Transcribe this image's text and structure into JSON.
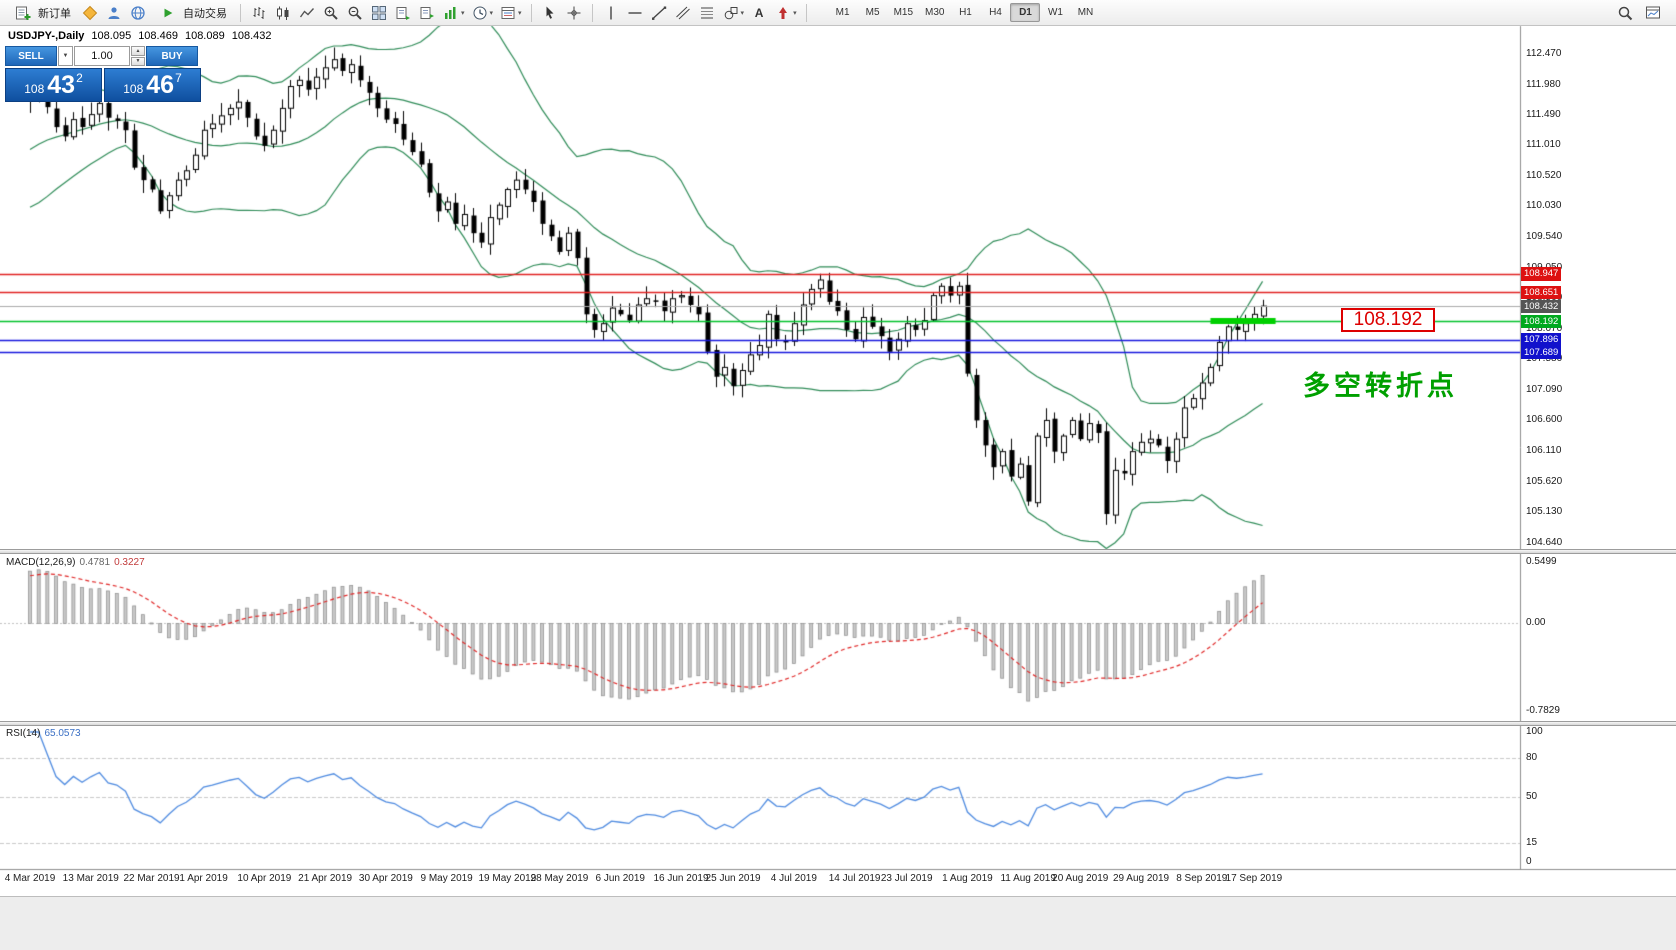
{
  "toolbar": {
    "new_order_label": "新订单",
    "auto_trading_label": "自动交易",
    "timeframes": [
      "M1",
      "M5",
      "M15",
      "M30",
      "H1",
      "H4",
      "D1",
      "W1",
      "MN"
    ],
    "active_timeframe": "D1",
    "icon_names": [
      "new-order",
      "metaeditor",
      "market",
      "community",
      "auto-trading",
      "bar-chart",
      "candlestick-chart",
      "line-chart",
      "zoom-in",
      "zoom-out",
      "tile-windows",
      "chart-list",
      "chart-shift",
      "indicators",
      "periods",
      "templates",
      "cursor",
      "crosshair",
      "vertical-line",
      "horizontal-line",
      "trendline",
      "equidistant-channel",
      "fibonacci",
      "shapes",
      "text-tool",
      "arrow-tool",
      "search",
      "chart-layout"
    ]
  },
  "icons": {
    "caret_down": "▾",
    "combo_caret": "▼",
    "spin_up": "▲",
    "spin_down": "▼",
    "text_tool": "A"
  },
  "chart_header": {
    "symbol": "USDJPY-,Daily",
    "open": "108.095",
    "high": "108.469",
    "low": "108.089",
    "close": "108.432"
  },
  "trade_panel": {
    "sell_label": "SELL",
    "buy_label": "BUY",
    "volume": "1.00",
    "sell": {
      "prefix": "108",
      "big": "43",
      "sup": "2"
    },
    "buy": {
      "prefix": "108",
      "big": "46",
      "sup": "7"
    }
  },
  "levels": [
    {
      "value": "108.947",
      "color": "#e02020",
      "tag": "#dd1111",
      "type": "resistance"
    },
    {
      "value": "108.651",
      "color": "#e02020",
      "tag": "#dd1111",
      "type": "resistance"
    },
    {
      "value": "108.432",
      "color": "#aaaaaa",
      "tag": "#555555",
      "type": "current"
    },
    {
      "value": "108.192",
      "color": "#00c22b",
      "tag": "#00a81e",
      "type": "pivot"
    },
    {
      "value": "107.896",
      "color": "#1616dd",
      "tag": "#1111cc",
      "type": "support"
    },
    {
      "value": "107.689",
      "color": "#1616dd",
      "tag": "#1111cc",
      "type": "support"
    }
  ],
  "annotation": {
    "text": "多空转折点",
    "color": "#00a000",
    "price_label": "108.192"
  },
  "axis": {
    "price_ticks": [
      "112.470",
      "111.980",
      "111.490",
      "111.010",
      "110.520",
      "110.030",
      "109.540",
      "109.050",
      "108.560",
      "108.070",
      "107.580",
      "107.090",
      "106.600",
      "106.110",
      "105.620",
      "105.130",
      "104.640"
    ]
  },
  "macd_panel": {
    "name": "MACD(12,26,9)",
    "value_main": "0.4781",
    "value_signal": "0.3227",
    "ticks": [
      "0.5499",
      "0.00",
      "-0.7829"
    ]
  },
  "rsi_panel": {
    "name": "RSI(14)",
    "value": "65.0573",
    "ticks": [
      {
        "label": "100",
        "value": 100
      },
      {
        "label": "80",
        "value": 80
      },
      {
        "label": "50",
        "value": 50
      },
      {
        "label": "15",
        "value": 15
      },
      {
        "label": "0",
        "value": 0
      }
    ],
    "levels": [
      80,
      50,
      15
    ]
  },
  "time_axis": [
    {
      "label": "4 Mar 2019",
      "bar": 0
    },
    {
      "label": "13 Mar 2019",
      "bar": 7
    },
    {
      "label": "22 Mar 2019",
      "bar": 14
    },
    {
      "label": "1 Apr 2019",
      "bar": 20
    },
    {
      "label": "10 Apr 2019",
      "bar": 27
    },
    {
      "label": "21 Apr 2019",
      "bar": 34
    },
    {
      "label": "30 Apr 2019",
      "bar": 41
    },
    {
      "label": "9 May 2019",
      "bar": 48
    },
    {
      "label": "19 May 2019",
      "bar": 55
    },
    {
      "label": "28 May 2019",
      "bar": 61
    },
    {
      "label": "6 Jun 2019",
      "bar": 68
    },
    {
      "label": "16 Jun 2019",
      "bar": 75
    },
    {
      "label": "25 Jun 2019",
      "bar": 81
    },
    {
      "label": "4 Jul 2019",
      "bar": 88
    },
    {
      "label": "14 Jul 2019",
      "bar": 95
    },
    {
      "label": "23 Jul 2019",
      "bar": 101
    },
    {
      "label": "1 Aug 2019",
      "bar": 108
    },
    {
      "label": "11 Aug 2019",
      "bar": 115
    },
    {
      "label": "20 Aug 2019",
      "bar": 121
    },
    {
      "label": "29 Aug 2019",
      "bar": 128
    },
    {
      "label": "8 Sep 2019",
      "bar": 135
    },
    {
      "label": "17 Sep 2019",
      "bar": 141
    }
  ],
  "chart_data": {
    "type": "candlestick",
    "symbol": "USDJPY",
    "timeframe": "Daily",
    "ylim": [
      104.54,
      112.92
    ],
    "closes": [
      111.72,
      111.85,
      111.62,
      111.3,
      111.15,
      111.42,
      111.3,
      111.5,
      111.68,
      111.45,
      111.4,
      111.25,
      110.65,
      110.45,
      110.3,
      109.95,
      110.2,
      110.45,
      110.6,
      110.85,
      111.25,
      111.35,
      111.48,
      111.6,
      111.7,
      111.45,
      111.15,
      111.0,
      111.25,
      111.6,
      111.95,
      112.05,
      111.9,
      112.1,
      112.25,
      112.38,
      112.2,
      112.3,
      112.05,
      111.85,
      111.6,
      111.42,
      111.35,
      111.1,
      110.9,
      110.7,
      110.25,
      109.95,
      110.1,
      109.75,
      109.9,
      109.6,
      109.45,
      109.85,
      110.05,
      110.3,
      110.45,
      110.3,
      110.1,
      109.75,
      109.55,
      109.3,
      109.6,
      109.2,
      108.3,
      108.05,
      108.15,
      108.4,
      108.3,
      108.2,
      108.45,
      108.55,
      108.5,
      108.35,
      108.55,
      108.6,
      108.45,
      108.3,
      107.7,
      107.3,
      107.45,
      107.15,
      107.4,
      107.65,
      107.8,
      108.3,
      107.9,
      107.85,
      108.15,
      108.45,
      108.7,
      108.85,
      108.5,
      108.35,
      108.05,
      107.9,
      108.25,
      108.1,
      107.95,
      107.7,
      107.9,
      108.15,
      108.05,
      108.2,
      108.6,
      108.75,
      108.6,
      108.75,
      107.35,
      106.6,
      106.2,
      105.85,
      106.1,
      105.7,
      105.9,
      105.3,
      106.35,
      106.6,
      106.1,
      106.35,
      106.6,
      106.3,
      106.55,
      106.4,
      105.1,
      105.8,
      105.75,
      106.1,
      106.25,
      106.3,
      106.2,
      105.95,
      106.3,
      106.8,
      106.95,
      107.2,
      107.45,
      107.85,
      108.1,
      108.05,
      108.15,
      108.3,
      108.432
    ],
    "bollinger": {
      "period": 20,
      "deviation": 2,
      "color": "#2E8B57"
    },
    "macd": {
      "fast": 12,
      "slow": 26,
      "signal": 9,
      "ylim": [
        -0.85,
        0.6
      ],
      "current_main": 0.4781,
      "current_signal": 0.3227
    },
    "rsi": {
      "period": 14,
      "current": 65.0573,
      "range": [
        0,
        100
      ]
    },
    "levels": [
      108.947,
      108.651,
      108.432,
      108.192,
      107.896,
      107.689
    ],
    "highlight_segment": {
      "price": 108.192,
      "from_bar": 136,
      "to_bar": 143.5,
      "color": "#00d000"
    }
  }
}
